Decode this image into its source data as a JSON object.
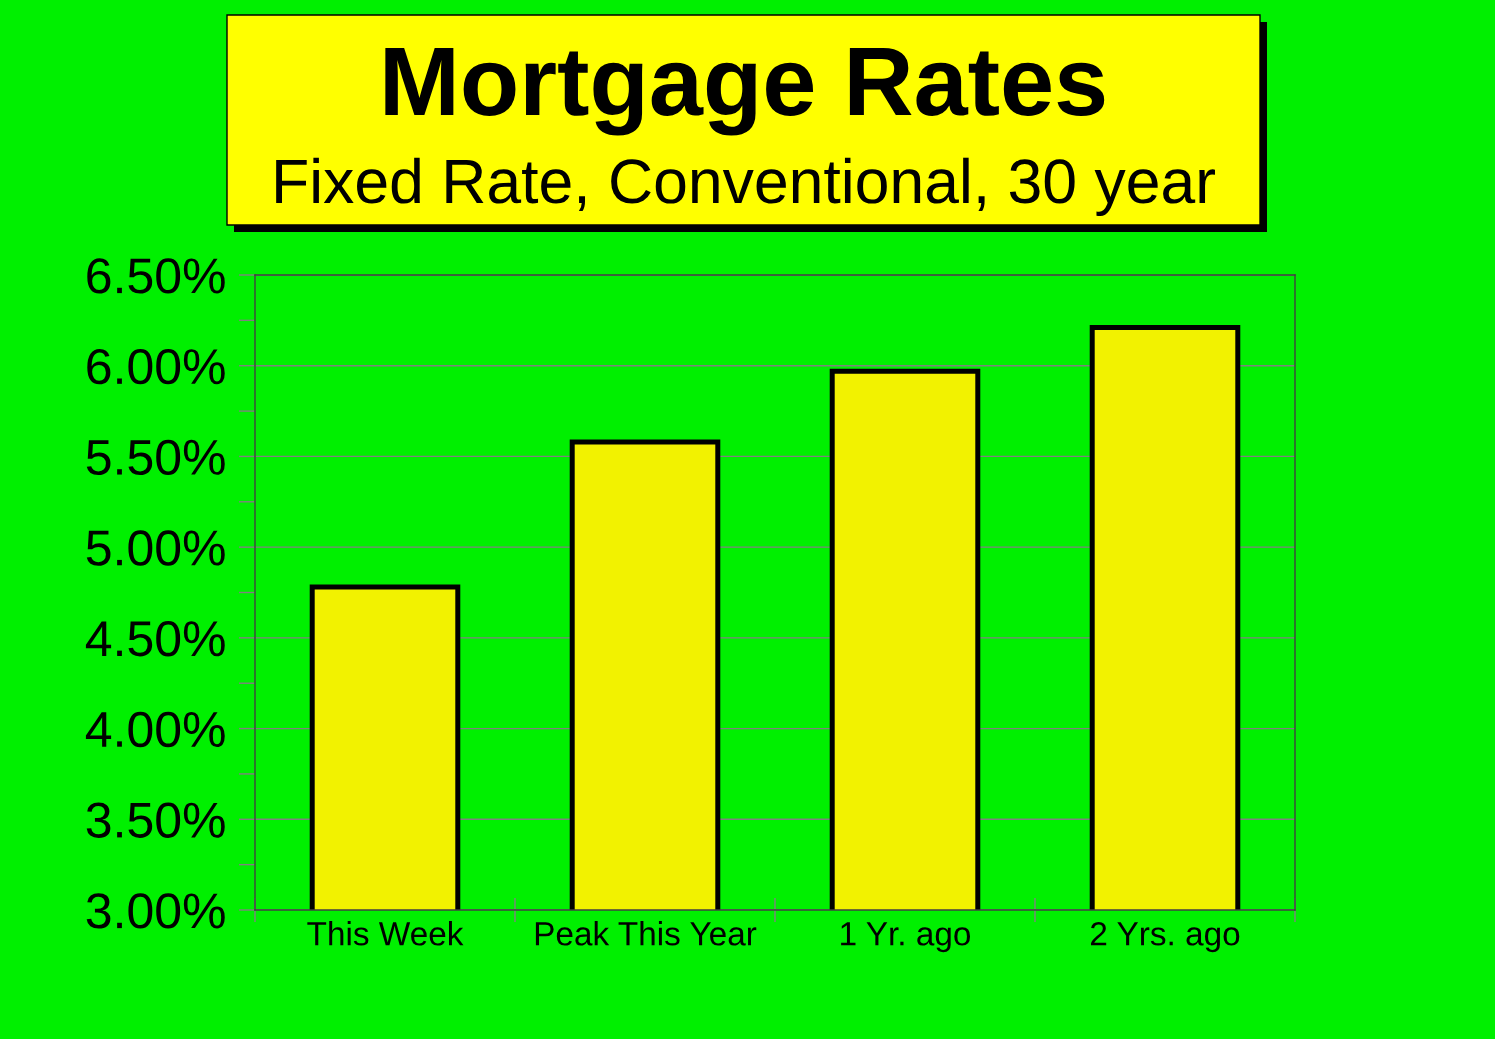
{
  "chart_data": {
    "type": "bar",
    "title": "Mortgage Rates",
    "subtitle": "Fixed Rate, Conventional, 30 year",
    "categories": [
      "This Week",
      "Peak This Year",
      "1 Yr. ago",
      "2 Yrs. ago"
    ],
    "values": [
      4.78,
      5.58,
      5.97,
      6.21
    ],
    "color": "#f2f200",
    "ylim": [
      3,
      6.5
    ],
    "yticks": [
      {
        "value": 3,
        "label": "3.00%"
      },
      {
        "value": 3.25,
        "label": null
      },
      {
        "value": 3.5,
        "label": "3.50%"
      },
      {
        "value": 3.75,
        "label": null
      },
      {
        "value": 4,
        "label": "4.00%"
      },
      {
        "value": 4.25,
        "label": null
      },
      {
        "value": 4.5,
        "label": "4.50%"
      },
      {
        "value": 4.75,
        "label": null
      },
      {
        "value": 5,
        "label": "5.00%"
      },
      {
        "value": 5.25,
        "label": null
      },
      {
        "value": 5.5,
        "label": "5.50%"
      },
      {
        "value": 5.75,
        "label": null
      },
      {
        "value": 6,
        "label": "6.00%"
      },
      {
        "value": 6.25,
        "label": null
      },
      {
        "value": 6.5,
        "label": "6.50%"
      }
    ],
    "grid": "y"
  }
}
